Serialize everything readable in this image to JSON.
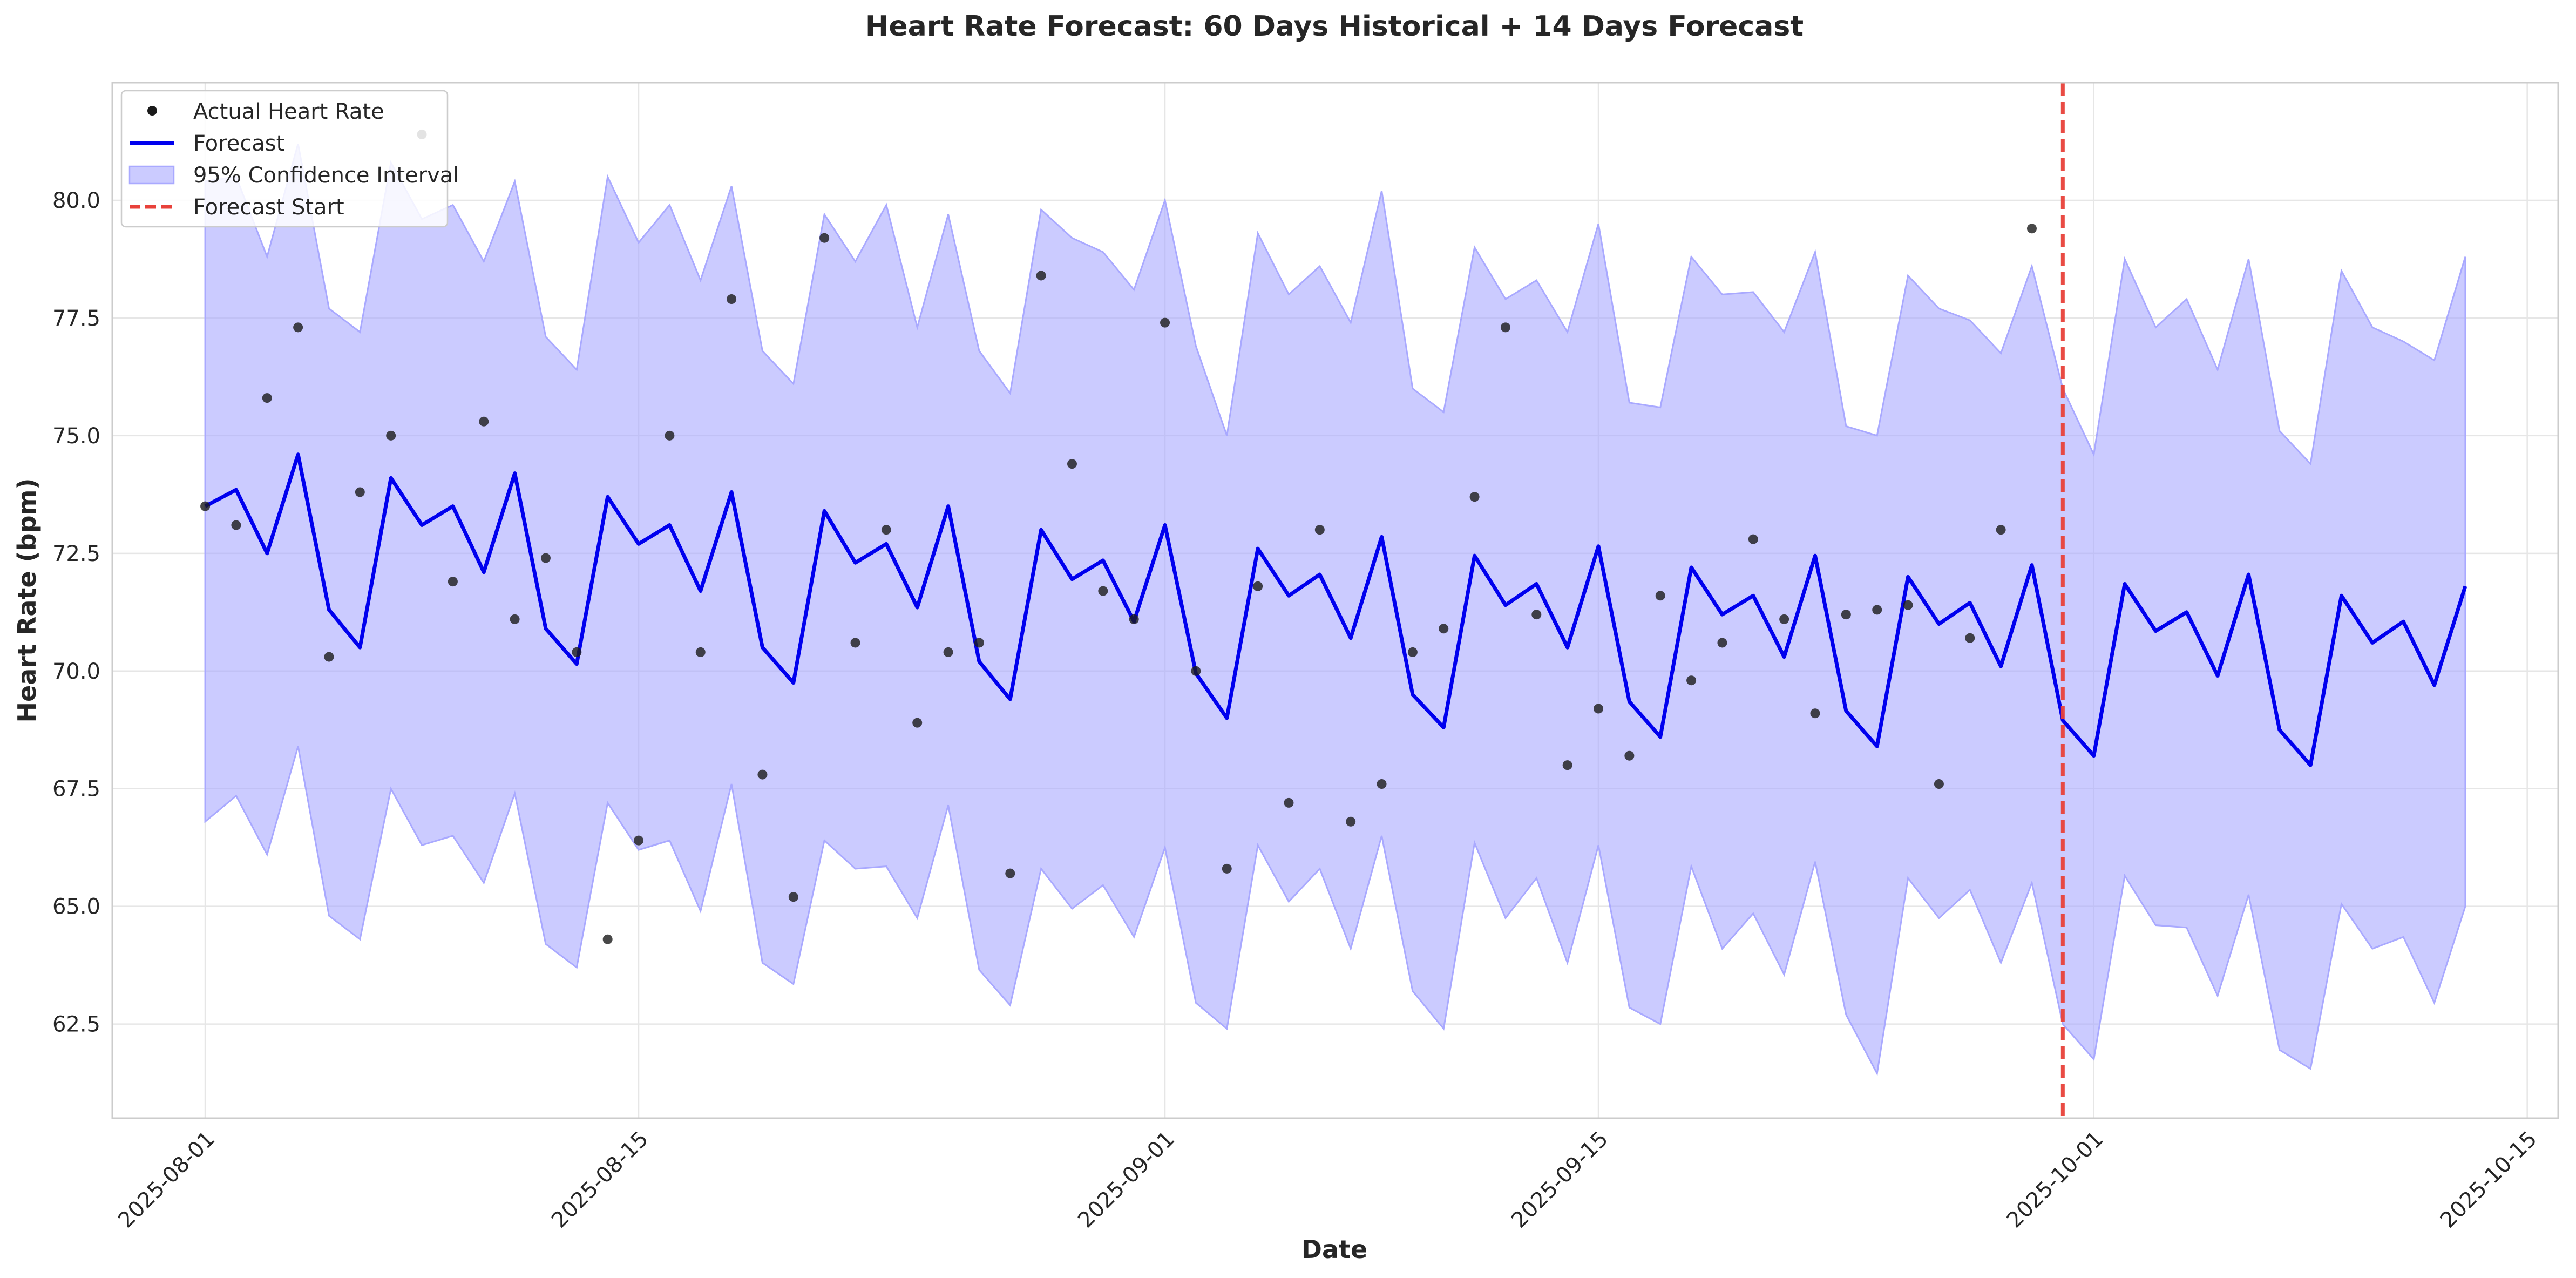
{
  "colors": {
    "actual": "#1a1a1a",
    "forecast": "#0000ee",
    "confidence": "#a9a9ff",
    "forecast_start": "#e8413a",
    "grid": "#e6e6e6"
  },
  "chart_data": {
    "type": "line",
    "title": "Heart Rate Forecast: 60 Days Historical + 14 Days Forecast",
    "xlabel": "Date",
    "ylabel": "Heart Rate (bpm)",
    "x_axis": "date",
    "xlim": [
      "2025-07-29",
      "2025-10-16"
    ],
    "ylim": [
      60.5,
      82.5
    ],
    "grid": true,
    "legend_position": "top-left",
    "x_ticks": [
      "2025-08-01",
      "2025-08-15",
      "2025-09-01",
      "2025-09-15",
      "2025-10-01",
      "2025-10-15"
    ],
    "y_ticks": [
      "62.5",
      "65.0",
      "67.5",
      "70.0",
      "72.5",
      "75.0",
      "77.5",
      "80.0"
    ],
    "legend": {
      "actual": "Actual Heart Rate",
      "forecast": "Forecast",
      "interval": "95% Confidence Interval",
      "start": "Forecast Start"
    },
    "dates": [
      "2025-08-01",
      "2025-08-02",
      "2025-08-03",
      "2025-08-04",
      "2025-08-05",
      "2025-08-06",
      "2025-08-07",
      "2025-08-08",
      "2025-08-09",
      "2025-08-10",
      "2025-08-11",
      "2025-08-12",
      "2025-08-13",
      "2025-08-14",
      "2025-08-15",
      "2025-08-16",
      "2025-08-17",
      "2025-08-18",
      "2025-08-19",
      "2025-08-20",
      "2025-08-21",
      "2025-08-22",
      "2025-08-23",
      "2025-08-24",
      "2025-08-25",
      "2025-08-26",
      "2025-08-27",
      "2025-08-28",
      "2025-08-29",
      "2025-08-30",
      "2025-08-31",
      "2025-09-01",
      "2025-09-02",
      "2025-09-03",
      "2025-09-04",
      "2025-09-05",
      "2025-09-06",
      "2025-09-07",
      "2025-09-08",
      "2025-09-09",
      "2025-09-10",
      "2025-09-11",
      "2025-09-12",
      "2025-09-13",
      "2025-09-14",
      "2025-09-15",
      "2025-09-16",
      "2025-09-17",
      "2025-09-18",
      "2025-09-19",
      "2025-09-20",
      "2025-09-21",
      "2025-09-22",
      "2025-09-23",
      "2025-09-24",
      "2025-09-25",
      "2025-09-26",
      "2025-09-27",
      "2025-09-28",
      "2025-09-29",
      "2025-09-30",
      "2025-10-01",
      "2025-10-02",
      "2025-10-03",
      "2025-10-04",
      "2025-10-05",
      "2025-10-06",
      "2025-10-07",
      "2025-10-08",
      "2025-10-09",
      "2025-10-10",
      "2025-10-11",
      "2025-10-12",
      "2025-10-13"
    ],
    "forecast": [
      73.5,
      73.85,
      72.5,
      74.6,
      71.3,
      70.5,
      74.1,
      73.1,
      73.5,
      72.1,
      74.2,
      70.9,
      70.15,
      73.7,
      72.7,
      73.1,
      71.7,
      73.8,
      70.5,
      69.75,
      73.4,
      72.3,
      72.7,
      71.35,
      73.5,
      70.2,
      69.4,
      73.0,
      71.95,
      72.35,
      71.05,
      73.1,
      69.95,
      69.0,
      72.6,
      71.6,
      72.05,
      70.7,
      72.85,
      69.5,
      68.8,
      72.45,
      71.4,
      71.85,
      70.5,
      72.65,
      69.35,
      68.6,
      72.2,
      71.2,
      71.6,
      70.3,
      72.45,
      69.15,
      68.4,
      72.0,
      71.0,
      71.45,
      70.1,
      72.25,
      68.95,
      68.2,
      71.85,
      70.85,
      71.25,
      69.9,
      72.05,
      68.75,
      68.0,
      71.6,
      70.6,
      71.05,
      69.7,
      71.8
    ],
    "upper": [
      80.4,
      80.5,
      78.8,
      81.2,
      77.7,
      77.2,
      80.8,
      79.6,
      79.9,
      78.7,
      80.4,
      77.1,
      76.4,
      80.5,
      79.1,
      79.9,
      78.3,
      80.3,
      76.8,
      76.1,
      79.7,
      78.7,
      79.9,
      77.3,
      79.7,
      76.8,
      75.9,
      79.8,
      79.2,
      78.9,
      78.1,
      80.0,
      76.9,
      75.0,
      79.3,
      78.0,
      78.6,
      77.4,
      80.2,
      76.0,
      75.5,
      79.0,
      77.9,
      78.3,
      77.2,
      79.5,
      75.7,
      75.6,
      78.8,
      78.0,
      78.05,
      77.2,
      78.9,
      75.2,
      75.0,
      78.4,
      77.7,
      77.45,
      76.75,
      78.6,
      76.0,
      74.6,
      78.75,
      77.3,
      77.9,
      76.4,
      78.75,
      75.1,
      74.4,
      78.5,
      77.3,
      77.0,
      76.6,
      78.8
    ],
    "lower": [
      66.8,
      67.35,
      66.1,
      68.4,
      64.8,
      64.3,
      67.5,
      66.3,
      66.5,
      65.5,
      67.4,
      64.2,
      63.7,
      67.2,
      66.2,
      66.4,
      64.9,
      67.6,
      63.8,
      63.35,
      66.4,
      65.8,
      65.85,
      64.75,
      67.15,
      63.65,
      62.9,
      65.8,
      64.95,
      65.45,
      64.35,
      66.25,
      62.95,
      62.4,
      66.3,
      65.1,
      65.8,
      64.1,
      66.5,
      63.2,
      62.4,
      66.35,
      64.75,
      65.6,
      63.8,
      66.3,
      62.85,
      62.5,
      65.85,
      64.1,
      64.85,
      63.55,
      65.95,
      62.7,
      61.45,
      65.6,
      64.75,
      65.35,
      63.8,
      65.5,
      62.5,
      61.75,
      65.65,
      64.6,
      64.55,
      63.1,
      65.25,
      61.95,
      61.55,
      65.05,
      64.1,
      64.35,
      62.95,
      65.0
    ],
    "actual": [
      73.5,
      73.1,
      75.8,
      77.3,
      70.3,
      73.8,
      75.0,
      81.4,
      71.9,
      75.3,
      71.1,
      72.4,
      70.4,
      64.3,
      66.4,
      75.0,
      70.4,
      77.9,
      67.8,
      65.2,
      79.2,
      70.6,
      73.0,
      68.9,
      70.4,
      70.6,
      65.7,
      78.4,
      74.4,
      71.7,
      71.1,
      77.4,
      70.0,
      65.8,
      71.8,
      67.2,
      73.0,
      66.8,
      67.6,
      70.4,
      70.9,
      73.7,
      77.3,
      71.2,
      68.0,
      69.2,
      68.2,
      71.6,
      69.8,
      70.6,
      72.8,
      71.1,
      69.1,
      71.2,
      71.3,
      71.4,
      67.6,
      70.7,
      73.0,
      79.4
    ],
    "forecast_start": "2025-09-30"
  }
}
